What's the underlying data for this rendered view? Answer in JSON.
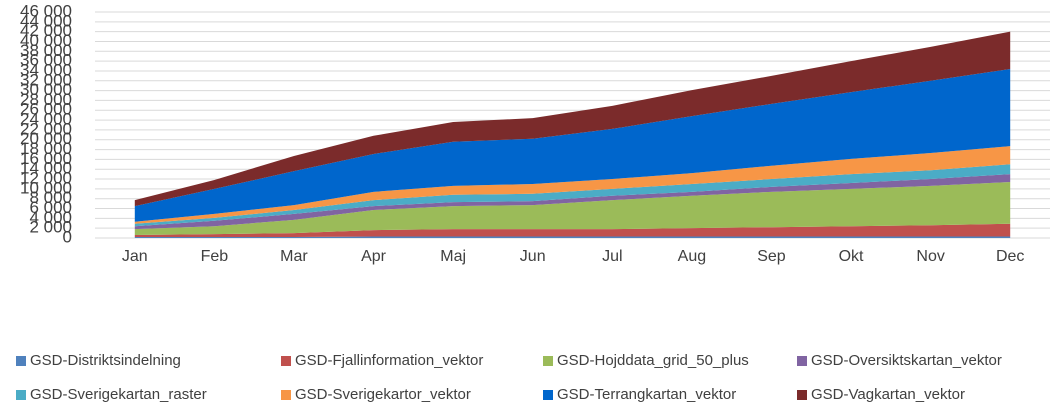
{
  "chart_data": {
    "type": "stacked_area",
    "categories": [
      "Jan",
      "Feb",
      "Mar",
      "Apr",
      "Maj",
      "Jun",
      "Jul",
      "Aug",
      "Sep",
      "Okt",
      "Nov",
      "Dec"
    ],
    "series": [
      {
        "name": "GSD-Distriktsindelning",
        "color": "#4f81bd",
        "values": [
          200,
          200,
          200,
          300,
          300,
          300,
          300,
          300,
          300,
          300,
          300,
          300
        ]
      },
      {
        "name": "GSD-Fjallinformation_vektor",
        "color": "#c0504d",
        "values": [
          400,
          600,
          800,
          1300,
          1500,
          1500,
          1500,
          1700,
          1900,
          2100,
          2300,
          2600
        ]
      },
      {
        "name": "GSD-Hojddata_grid_50_plus",
        "color": "#9bbb59",
        "values": [
          1200,
          1600,
          2700,
          4100,
          4700,
          4900,
          5900,
          6600,
          7200,
          7600,
          8000,
          8500
        ]
      },
      {
        "name": "GSD-Oversiktskartan_vektor",
        "color": "#8064a2",
        "values": [
          600,
          1100,
          1200,
          800,
          800,
          800,
          900,
          800,
          1000,
          1200,
          1400,
          1600
        ]
      },
      {
        "name": "GSD-Sverigekartan_raster",
        "color": "#4bacc6",
        "values": [
          500,
          600,
          800,
          1200,
          1500,
          1500,
          1400,
          1600,
          1600,
          1800,
          1800,
          2000
        ]
      },
      {
        "name": "GSD-Sverigekartor_vektor",
        "color": "#f79646",
        "values": [
          400,
          800,
          1000,
          1700,
          1800,
          2000,
          2000,
          2200,
          2700,
          3100,
          3500,
          3700
        ]
      },
      {
        "name": "GSD-Terrangkartan_vektor",
        "color": "#0066cc",
        "values": [
          3200,
          5100,
          6900,
          7700,
          9000,
          9200,
          10200,
          11600,
          12600,
          13600,
          14700,
          15700
        ]
      },
      {
        "name": "GSD-Vagkartan_vektor",
        "color": "#7b2b2b",
        "values": [
          1200,
          1800,
          3100,
          3700,
          4000,
          4200,
          4700,
          5300,
          5700,
          6300,
          6900,
          7600
        ]
      }
    ],
    "ylim": [
      0,
      46000
    ],
    "yticks": [
      0,
      {
        "value": 2000,
        "label": "2 000"
      },
      {
        "value": 4000,
        "label": "4 000"
      },
      {
        "value": 6000,
        "label": "6 000"
      },
      {
        "value": 8000,
        "label": "8 000"
      },
      {
        "value": 10000,
        "label": "10 000"
      },
      {
        "value": 12000,
        "label": "12 000"
      },
      {
        "value": 14000,
        "label": "14 000"
      },
      {
        "value": 16000,
        "label": "16 000"
      },
      {
        "value": 18000,
        "label": "18 000"
      },
      {
        "value": 20000,
        "label": "20 000"
      },
      {
        "value": 22000,
        "label": "22 000"
      },
      {
        "value": 24000,
        "label": "24 000"
      },
      {
        "value": 26000,
        "label": "26 000"
      },
      {
        "value": 28000,
        "label": "28 000"
      },
      {
        "value": 30000,
        "label": "30 000"
      },
      {
        "value": 32000,
        "label": "32 000"
      },
      {
        "value": 34000,
        "label": "34 000"
      },
      {
        "value": 36000,
        "label": "36 000"
      },
      {
        "value": 38000,
        "label": "38 000"
      },
      {
        "value": 40000,
        "label": "40 000"
      },
      {
        "value": 42000,
        "label": "42 000"
      },
      {
        "value": 44000,
        "label": "44 000"
      },
      {
        "value": 46000,
        "label": "46 000"
      }
    ],
    "grid": true
  }
}
